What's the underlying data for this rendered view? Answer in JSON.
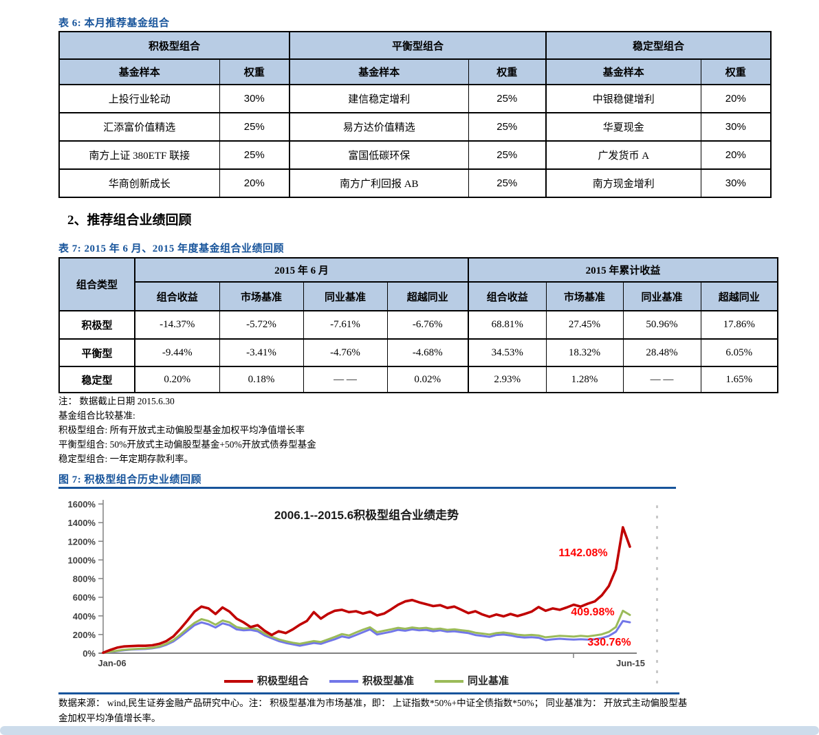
{
  "colors": {
    "accent": "#17549b",
    "table_header_fill": "#b8cce4",
    "bottom_band": "#cddceb",
    "annotation": "#ff0000"
  },
  "page": {
    "table6": {
      "title": "表 6:  本月推荐基金组合",
      "col_fund": "基金样本",
      "col_weight": "权重",
      "groups": [
        {
          "title": "积极型组合",
          "funds": [
            [
              "上投行业轮动",
              "30%"
            ],
            [
              "汇添富价值精选",
              "25%"
            ],
            [
              "南方上证 380ETF 联接",
              "25%"
            ],
            [
              "华商创新成长",
              "20%"
            ]
          ]
        },
        {
          "title": "平衡型组合",
          "funds": [
            [
              "建信稳定增利",
              "25%"
            ],
            [
              "易方达价值精选",
              "25%"
            ],
            [
              "富国低碳环保",
              "25%"
            ],
            [
              "南方广利回报 AB",
              "25%"
            ]
          ]
        },
        {
          "title": "稳定型组合",
          "funds": [
            [
              "中银稳健增利",
              "20%"
            ],
            [
              "华夏现金",
              "30%"
            ],
            [
              "广发货币 A",
              "20%"
            ],
            [
              "南方现金增利",
              "30%"
            ]
          ]
        }
      ]
    },
    "section2": {
      "title": "2、推荐组合业绩回顾"
    },
    "table7": {
      "title": "表 7:  2015 年 6 月、2015 年度基金组合业绩回顾",
      "col_type": "组合类型",
      "group_jun": "2015 年 6 月",
      "group_ytd": "2015 年累计收益",
      "subcols": [
        "组合收益",
        "市场基准",
        "同业基准",
        "超越同业"
      ],
      "rows": [
        {
          "type": "积极型",
          "jun": [
            "-14.37%",
            "-5.72%",
            "-7.61%",
            "-6.76%"
          ],
          "ytd": [
            "68.81%",
            "27.45%",
            "50.96%",
            "17.86%"
          ]
        },
        {
          "type": "平衡型",
          "jun": [
            "-9.44%",
            "-3.41%",
            "-4.76%",
            "-4.68%"
          ],
          "ytd": [
            "34.53%",
            "18.32%",
            "28.48%",
            "6.05%"
          ]
        },
        {
          "type": "稳定型",
          "jun": [
            "0.20%",
            "0.18%",
            "— —",
            "0.02%"
          ],
          "ytd": [
            "2.93%",
            "1.28%",
            "— —",
            "1.65%"
          ]
        }
      ],
      "notes": [
        "注：  数据截止日期 2015.6.30",
        "基金组合比较基准:",
        "积极型组合:  所有开放式主动偏股型基金加权平均净值增长率",
        "平衡型组合:  50%开放式主动偏股型基金+50%开放式债券型基金",
        "稳定型组合:  一年定期存款利率。"
      ]
    },
    "figure7": {
      "title": "图 7:  积极型组合历史业绩回顾",
      "source_note": "数据来源：  wind,民生证券金融产品研究中心。注：  积极型基准为市场基准，即：  上证指数*50%+中证全债指数*50%；  同业基准为：  开放式主动偏股型基金加权平均净值增长率。"
    }
  },
  "chart_data": {
    "type": "line",
    "title": "2006.1--2015.6积极型组合业绩走势",
    "x_range": [
      "Jan-06",
      "Jun-15"
    ],
    "y_ticks": [
      "0%",
      "200%",
      "400%",
      "600%",
      "800%",
      "1000%",
      "1200%",
      "1400%",
      "1600%"
    ],
    "ylim": [
      0,
      1600
    ],
    "grid": false,
    "legend_position": "bottom",
    "annotations": [
      {
        "text": "1142.08%",
        "series": "积极型组合",
        "meaning": "end value"
      },
      {
        "text": "409.98%",
        "series": "同业基准",
        "meaning": "end value"
      },
      {
        "text": "330.76%",
        "series": "积极型基准",
        "meaning": "end value"
      }
    ],
    "series": [
      {
        "name": "积极型组合",
        "color": "#c00000",
        "values": [
          5,
          35,
          60,
          72,
          76,
          80,
          80,
          85,
          100,
          130,
          180,
          260,
          350,
          445,
          500,
          480,
          420,
          490,
          445,
          370,
          330,
          280,
          300,
          240,
          195,
          235,
          215,
          255,
          305,
          345,
          440,
          370,
          420,
          455,
          465,
          440,
          450,
          425,
          445,
          405,
          425,
          470,
          520,
          555,
          570,
          545,
          525,
          505,
          515,
          485,
          500,
          465,
          430,
          450,
          415,
          390,
          415,
          395,
          420,
          398,
          420,
          445,
          495,
          455,
          480,
          465,
          490,
          520,
          500,
          530,
          555,
          620,
          720,
          900,
          1350,
          1142
        ]
      },
      {
        "name": "积极型基准",
        "color": "#7277e8",
        "values": [
          3,
          12,
          22,
          32,
          38,
          42,
          45,
          52,
          65,
          90,
          125,
          180,
          240,
          300,
          330,
          310,
          275,
          320,
          300,
          255,
          245,
          250,
          235,
          190,
          160,
          130,
          110,
          95,
          80,
          95,
          110,
          100,
          125,
          150,
          180,
          165,
          195,
          225,
          255,
          200,
          215,
          230,
          250,
          240,
          255,
          245,
          250,
          235,
          245,
          230,
          235,
          225,
          215,
          195,
          185,
          175,
          195,
          200,
          190,
          175,
          168,
          172,
          165,
          140,
          148,
          155,
          150,
          145,
          150,
          145,
          150,
          162,
          185,
          230,
          345,
          331
        ]
      },
      {
        "name": "同业基准",
        "color": "#9bbb59",
        "values": [
          4,
          15,
          26,
          37,
          43,
          48,
          51,
          58,
          73,
          100,
          140,
          200,
          265,
          325,
          365,
          345,
          305,
          350,
          330,
          280,
          265,
          270,
          255,
          210,
          178,
          148,
          128,
          112,
          100,
          115,
          130,
          120,
          147,
          175,
          205,
          190,
          222,
          252,
          278,
          225,
          240,
          255,
          272,
          262,
          276,
          266,
          272,
          257,
          264,
          250,
          256,
          246,
          238,
          220,
          210,
          200,
          216,
          222,
          212,
          198,
          192,
          196,
          190,
          170,
          178,
          186,
          182,
          178,
          186,
          180,
          190,
          202,
          228,
          280,
          455,
          410
        ]
      }
    ]
  }
}
